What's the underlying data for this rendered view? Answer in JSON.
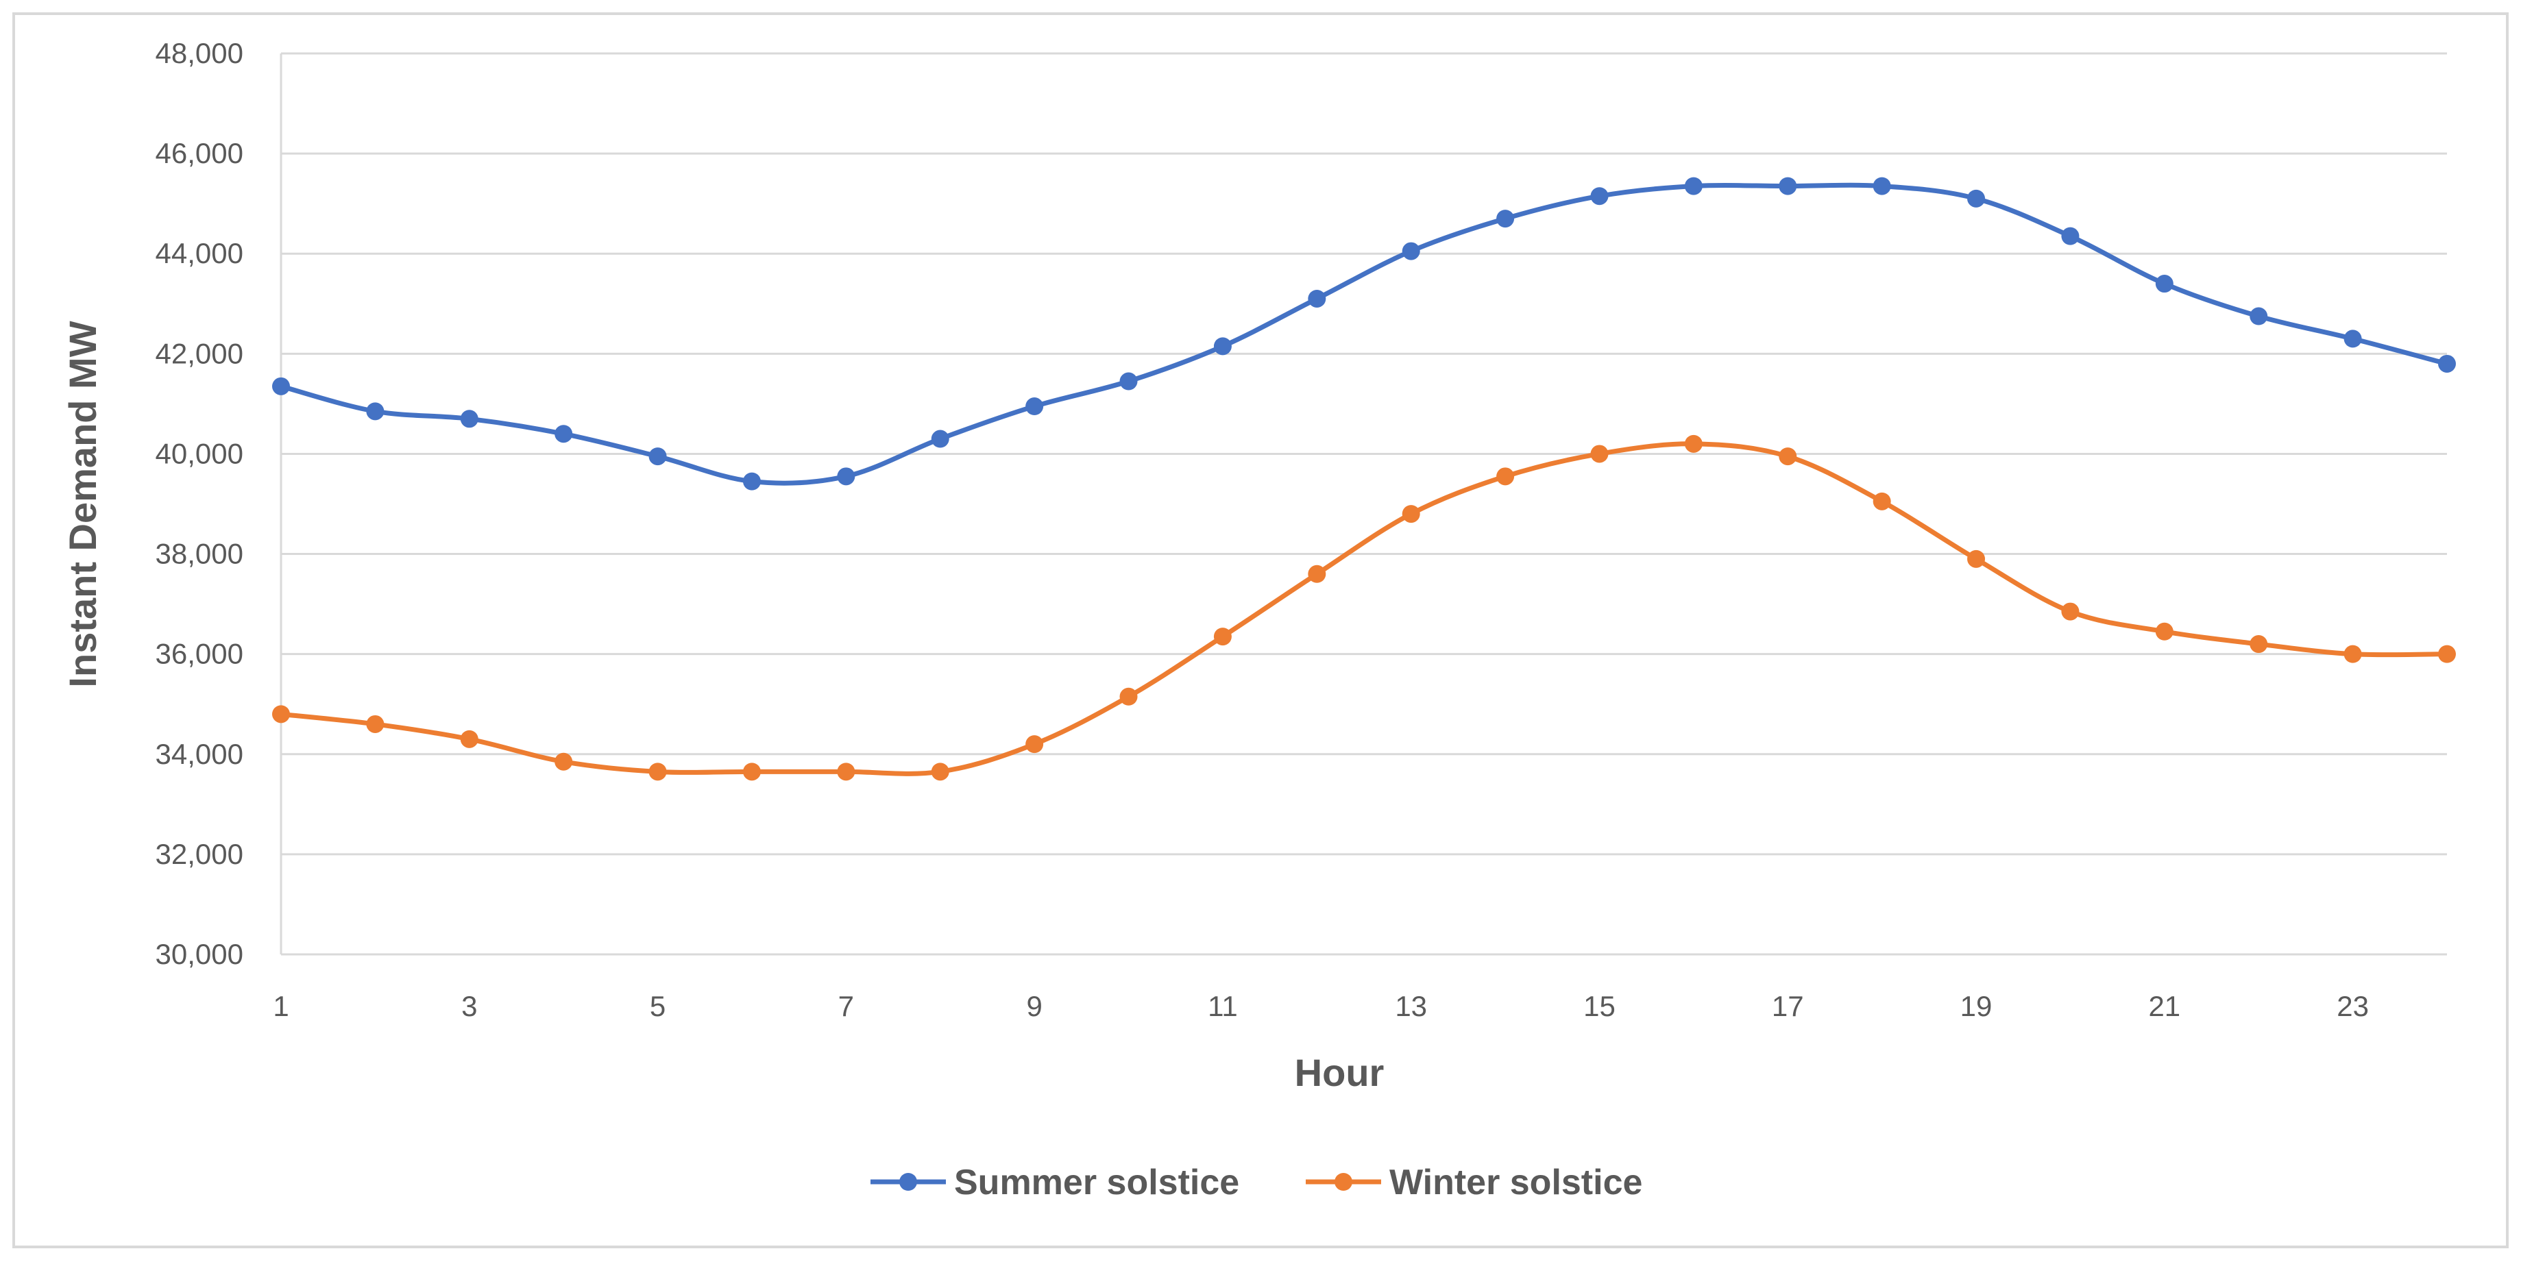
{
  "chart_data": {
    "type": "line",
    "title": "",
    "xlabel": "Hour",
    "ylabel": "Instant Demand MW",
    "x": [
      1,
      2,
      3,
      4,
      5,
      6,
      7,
      8,
      9,
      10,
      11,
      12,
      13,
      14,
      15,
      16,
      17,
      18,
      19,
      20,
      21,
      22,
      23,
      24
    ],
    "xticks": [
      1,
      3,
      5,
      7,
      9,
      11,
      13,
      15,
      17,
      19,
      21,
      23
    ],
    "xtick_labels": [
      "1",
      "3",
      "5",
      "7",
      "9",
      "11",
      "13",
      "15",
      "17",
      "19",
      "21",
      "23"
    ],
    "ylim": [
      30000,
      48000
    ],
    "yticks": [
      30000,
      32000,
      34000,
      36000,
      38000,
      40000,
      42000,
      44000,
      46000,
      48000
    ],
    "ytick_labels": [
      "30,000",
      "32,000",
      "34,000",
      "36,000",
      "38,000",
      "40,000",
      "42,000",
      "44,000",
      "46,000",
      "48,000"
    ],
    "grid": true,
    "legend_position": "bottom",
    "series": [
      {
        "name": "Summer solstice",
        "color": "#4472c4",
        "values": [
          41350,
          40850,
          40700,
          40400,
          39950,
          39450,
          39550,
          40300,
          40950,
          41450,
          42150,
          43100,
          44050,
          44700,
          45150,
          45350,
          45350,
          45350,
          45100,
          44350,
          43400,
          42750,
          42300,
          41800
        ]
      },
      {
        "name": "Winter solstice",
        "color": "#ed7d31",
        "values": [
          34800,
          34600,
          34300,
          33850,
          33650,
          33650,
          33650,
          33650,
          34200,
          35150,
          36350,
          37600,
          38800,
          39550,
          40000,
          40200,
          39950,
          39050,
          37900,
          36850,
          36450,
          36200,
          36000,
          36000
        ]
      }
    ]
  }
}
